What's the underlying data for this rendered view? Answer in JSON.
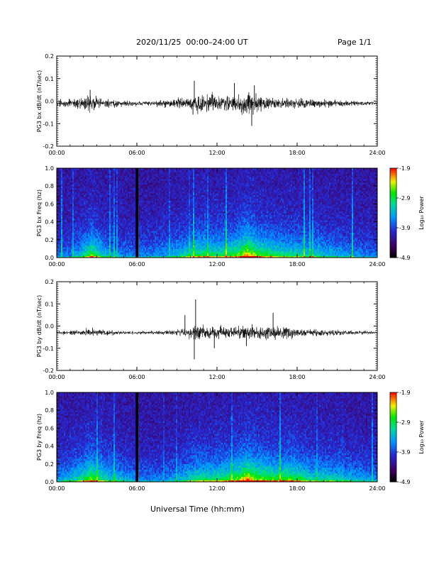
{
  "header": {
    "title": "2020/11/25  00:00–24:00 UT",
    "page": "Page 1/1"
  },
  "x_axis_title": "Universal Time (hh:mm)",
  "chart_data": [
    {
      "type": "line",
      "ylabel": "PG3 bx dB/dt (nT/sec)",
      "x_unit": "hours UT",
      "xlim": [
        0,
        24
      ],
      "ylim": [
        -0.2,
        0.2
      ],
      "x_ticks": [
        "00:00",
        "06:00",
        "12:00",
        "18:00",
        "24:00"
      ],
      "y_ticks": [
        "0.2",
        "0.1",
        "0.0",
        "-0.1",
        "-0.2"
      ],
      "baseline": -0.01,
      "envelope": [
        {
          "x": 0,
          "amp": 0.02
        },
        {
          "x": 1,
          "amp": 0.03
        },
        {
          "x": 2,
          "amp": 0.035
        },
        {
          "x": 2.7,
          "amp": 0.05
        },
        {
          "x": 3.5,
          "amp": 0.03
        },
        {
          "x": 5,
          "amp": 0.02
        },
        {
          "x": 6,
          "amp": 0.015
        },
        {
          "x": 8,
          "amp": 0.02
        },
        {
          "x": 9.5,
          "amp": 0.035
        },
        {
          "x": 10.5,
          "amp": 0.06
        },
        {
          "x": 11.5,
          "amp": 0.05
        },
        {
          "x": 12.5,
          "amp": 0.04
        },
        {
          "x": 13.5,
          "amp": 0.06
        },
        {
          "x": 14.5,
          "amp": 0.07
        },
        {
          "x": 15.5,
          "amp": 0.045
        },
        {
          "x": 16.5,
          "amp": 0.035
        },
        {
          "x": 18,
          "amp": 0.03
        },
        {
          "x": 20,
          "amp": 0.025
        },
        {
          "x": 22,
          "amp": 0.015
        },
        {
          "x": 24,
          "amp": 0.01
        }
      ],
      "spikes": [
        {
          "x": 10.3,
          "y": 0.09
        },
        {
          "x": 14.8,
          "y": 0.07
        },
        {
          "x": 14.6,
          "y": -0.11
        },
        {
          "x": 10.2,
          "y": -0.06
        },
        {
          "x": 2.5,
          "y": 0.05
        },
        {
          "x": 13.3,
          "y": 0.08
        }
      ]
    },
    {
      "type": "heatmap",
      "ylabel": "PG3 bx Freq (hz)",
      "xlim": [
        0,
        24
      ],
      "ylim": [
        0,
        1.0
      ],
      "x_ticks": [
        "00:00",
        "06:00",
        "12:00",
        "18:00",
        "24:00"
      ],
      "y_ticks": [
        "1.0",
        "0.8",
        "0.6",
        "0.4",
        "0.2",
        "0.0"
      ],
      "colorbar": {
        "label": "Log₁₀ Power",
        "min": -4.9,
        "max": -1.9,
        "ticks": [
          "-1.9",
          "-2.9",
          "-3.9",
          "-4.9"
        ]
      },
      "data_gap": {
        "x0": 5.9,
        "x1": 6.1
      },
      "activity": [
        {
          "x": 0,
          "level": 0.25
        },
        {
          "x": 1,
          "level": 0.3
        },
        {
          "x": 2,
          "level": 0.5
        },
        {
          "x": 2.6,
          "level": 0.75
        },
        {
          "x": 3.5,
          "level": 0.45
        },
        {
          "x": 5,
          "level": 0.3
        },
        {
          "x": 6.5,
          "level": 0.3
        },
        {
          "x": 8,
          "level": 0.35
        },
        {
          "x": 9.5,
          "level": 0.5
        },
        {
          "x": 10.5,
          "level": 0.65
        },
        {
          "x": 12,
          "level": 0.6
        },
        {
          "x": 13.5,
          "level": 0.7
        },
        {
          "x": 14.3,
          "level": 1.0
        },
        {
          "x": 15,
          "level": 0.75
        },
        {
          "x": 16.5,
          "level": 0.6
        },
        {
          "x": 18,
          "level": 0.55
        },
        {
          "x": 20,
          "level": 0.45
        },
        {
          "x": 22,
          "level": 0.35
        },
        {
          "x": 24,
          "level": 0.25
        }
      ]
    },
    {
      "type": "line",
      "ylabel": "PG3 by dB/dt (nT/sec)",
      "x_unit": "hours UT",
      "xlim": [
        0,
        24
      ],
      "ylim": [
        -0.2,
        0.2
      ],
      "x_ticks": [
        "00:00",
        "06:00",
        "12:00",
        "18:00",
        "24:00"
      ],
      "y_ticks": [
        "0.2",
        "0.1",
        "0.0",
        "-0.1",
        "-0.2"
      ],
      "baseline": -0.03,
      "envelope": [
        {
          "x": 0,
          "amp": 0.012
        },
        {
          "x": 1,
          "amp": 0.015
        },
        {
          "x": 2,
          "amp": 0.02
        },
        {
          "x": 2.7,
          "amp": 0.03
        },
        {
          "x": 4,
          "amp": 0.015
        },
        {
          "x": 6,
          "amp": 0.01
        },
        {
          "x": 8,
          "amp": 0.012
        },
        {
          "x": 9.5,
          "amp": 0.025
        },
        {
          "x": 10.5,
          "amp": 0.045
        },
        {
          "x": 12,
          "amp": 0.035
        },
        {
          "x": 13.5,
          "amp": 0.045
        },
        {
          "x": 14.5,
          "amp": 0.05
        },
        {
          "x": 16,
          "amp": 0.04
        },
        {
          "x": 17,
          "amp": 0.04
        },
        {
          "x": 18.5,
          "amp": 0.025
        },
        {
          "x": 20,
          "amp": 0.02
        },
        {
          "x": 22,
          "amp": 0.015
        },
        {
          "x": 24,
          "amp": 0.008
        }
      ],
      "spikes": [
        {
          "x": 10.4,
          "y": 0.12
        },
        {
          "x": 10.3,
          "y": -0.15
        },
        {
          "x": 9.6,
          "y": 0.05
        },
        {
          "x": 11.8,
          "y": -0.1
        },
        {
          "x": 14.2,
          "y": -0.09
        },
        {
          "x": 16.2,
          "y": 0.06
        }
      ]
    },
    {
      "type": "heatmap",
      "ylabel": "PG3 by Freq (hz)",
      "xlim": [
        0,
        24
      ],
      "ylim": [
        0,
        1.0
      ],
      "x_ticks": [
        "00:00",
        "06:00",
        "12:00",
        "18:00",
        "24:00"
      ],
      "y_ticks": [
        "1.0",
        "0.8",
        "0.6",
        "0.4",
        "0.2",
        "0.0"
      ],
      "colorbar": {
        "label": "Log₁₀ Power",
        "min": -4.9,
        "max": -1.9,
        "ticks": [
          "-1.9",
          "-2.9",
          "-3.9",
          "-4.9"
        ]
      },
      "data_gap": {
        "x0": 5.9,
        "x1": 6.1
      },
      "activity": [
        {
          "x": 0,
          "level": 0.35
        },
        {
          "x": 1,
          "level": 0.45
        },
        {
          "x": 2,
          "level": 0.6
        },
        {
          "x": 2.6,
          "level": 0.8
        },
        {
          "x": 3.5,
          "level": 0.55
        },
        {
          "x": 5,
          "level": 0.4
        },
        {
          "x": 6.5,
          "level": 0.3
        },
        {
          "x": 8,
          "level": 0.3
        },
        {
          "x": 9.5,
          "level": 0.45
        },
        {
          "x": 10.5,
          "level": 0.6
        },
        {
          "x": 12,
          "level": 0.6
        },
        {
          "x": 13.5,
          "level": 0.75
        },
        {
          "x": 14.3,
          "level": 1.0
        },
        {
          "x": 15,
          "level": 0.8
        },
        {
          "x": 16.5,
          "level": 0.7
        },
        {
          "x": 17.5,
          "level": 0.75
        },
        {
          "x": 19,
          "level": 0.55
        },
        {
          "x": 21,
          "level": 0.5
        },
        {
          "x": 22.5,
          "level": 0.4
        },
        {
          "x": 24,
          "level": 0.3
        }
      ]
    }
  ]
}
